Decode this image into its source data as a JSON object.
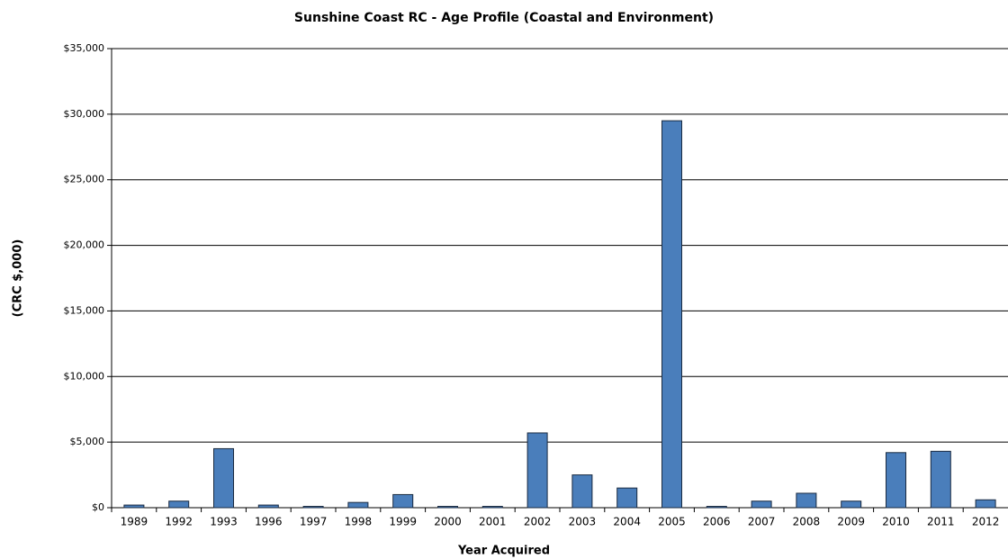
{
  "chart_data": {
    "type": "bar",
    "title": "Sunshine Coast RC - Age Profile (Coastal and Environment)",
    "x_label": "Year Acquired",
    "y_label": "(CRC $,000)",
    "categories": [
      "1989",
      "1992",
      "1993",
      "1996",
      "1997",
      "1998",
      "1999",
      "2000",
      "2001",
      "2002",
      "2003",
      "2004",
      "2005",
      "2006",
      "2007",
      "2008",
      "2009",
      "2010",
      "2011",
      "2012"
    ],
    "values": [
      200,
      500,
      4500,
      200,
      100,
      400,
      1000,
      100,
      100,
      5700,
      2500,
      1500,
      29500,
      100,
      500,
      1100,
      500,
      4200,
      4300,
      600
    ],
    "color": "#4a7ebb",
    "ylim": [
      0,
      35000
    ],
    "yticks": [
      {
        "value": 0,
        "label": "$0"
      },
      {
        "value": 5000,
        "label": "$5,000"
      },
      {
        "value": 10000,
        "label": "$10,000"
      },
      {
        "value": 15000,
        "label": "$15,000"
      },
      {
        "value": 20000,
        "label": "$20,000"
      },
      {
        "value": 25000,
        "label": "$25,000"
      },
      {
        "value": 30000,
        "label": "$30,000"
      },
      {
        "value": 35000,
        "label": "$35,000"
      }
    ],
    "grid": true
  }
}
